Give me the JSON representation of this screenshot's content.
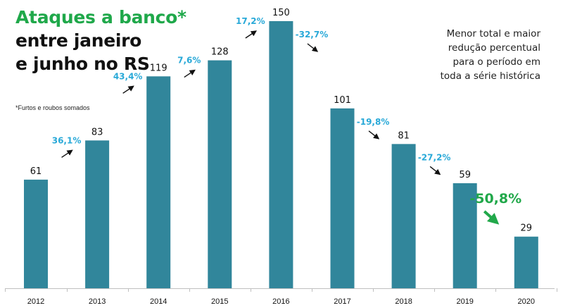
{
  "chart_data": {
    "type": "bar",
    "title_lines": [
      "Ataques a banco*",
      "entre janeiro",
      "e junho no RS"
    ],
    "footnote": "*Furtos e roubos somados",
    "annotation_lines": [
      "Menor total e maior",
      "redução percentual",
      "para o período em",
      "toda a série histórica"
    ],
    "categories": [
      "2012",
      "2013",
      "2014",
      "2015",
      "2016",
      "2017",
      "2018",
      "2019",
      "2020"
    ],
    "values": [
      61,
      83,
      119,
      128,
      150,
      101,
      81,
      59,
      29
    ],
    "changes": [
      {
        "label": "36,1%",
        "direction": "up"
      },
      {
        "label": "43,4%",
        "direction": "up"
      },
      {
        "label": "7,6%",
        "direction": "up"
      },
      {
        "label": "17,2%",
        "direction": "up"
      },
      {
        "label": "-32,7%",
        "direction": "down"
      },
      {
        "label": "-19,8%",
        "direction": "down"
      },
      {
        "label": "-27,2%",
        "direction": "down"
      },
      {
        "label": "-50,8%",
        "direction": "down",
        "highlight": true
      }
    ],
    "ylim": [
      0,
      150
    ],
    "grid": false,
    "colors": {
      "bar": "#31869b",
      "title_accent": "#1fa84a",
      "change_label": "#29a9d8",
      "highlight": "#21a84a",
      "text": "#111111",
      "axis": "#bfbfbf"
    }
  }
}
